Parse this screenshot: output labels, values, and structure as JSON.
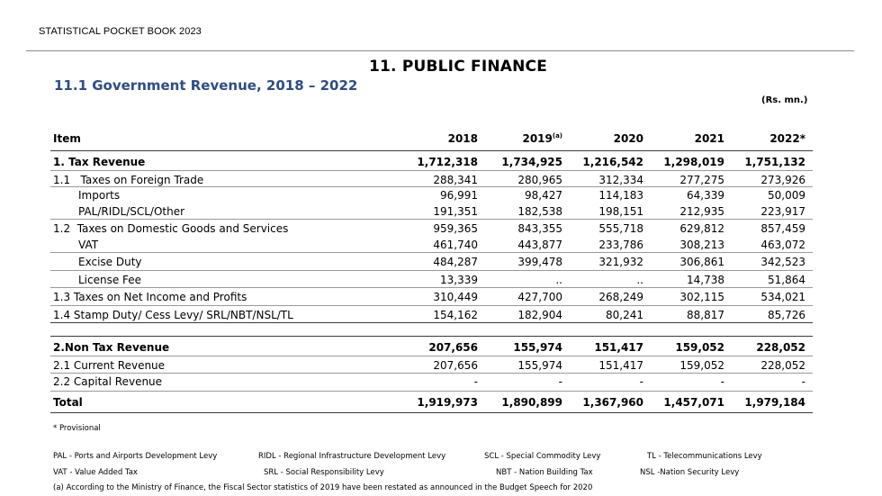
{
  "header": {
    "book_title": "STATISTICAL POCKET BOOK 2023"
  },
  "chapter_title": "11. PUBLIC FINANCE",
  "section_title": "11.1 Government Revenue, 2018 – 2022",
  "units": "(Rs. mn.)",
  "table": {
    "columns": [
      "Item",
      "2018",
      "2019",
      "2020",
      "2021",
      "2022*"
    ],
    "column_2019_superscript": "(a)",
    "rows": [
      {
        "label": "1. Tax Revenue",
        "values": [
          "1,712,318",
          "1,734,925",
          "1,216,542",
          "1,298,019",
          "1,751,132"
        ]
      },
      {
        "label": "1.1   Taxes on Foreign Trade",
        "values": [
          "288,341",
          "280,965",
          "312,334",
          "277,275",
          "273,926"
        ]
      },
      {
        "label": "Imports",
        "values": [
          "96,991",
          "98,427",
          "114,183",
          "64,339",
          "50,009"
        ]
      },
      {
        "label": "PAL/RIDL/SCL/Other",
        "values": [
          "191,351",
          "182,538",
          "198,151",
          "212,935",
          "223,917"
        ]
      },
      {
        "label": "1.2  Taxes on Domestic Goods and Services",
        "values": [
          "959,365",
          "843,355",
          "555,718",
          "629,812",
          "857,459"
        ]
      },
      {
        "label": "VAT",
        "values": [
          "461,740",
          "443,877",
          "233,786",
          "308,213",
          "463,072"
        ]
      },
      {
        "label": "Excise Duty",
        "values": [
          "484,287",
          "399,478",
          "321,932",
          "306,861",
          "342,523"
        ]
      },
      {
        "label": "License Fee",
        "values": [
          "13,339",
          "..",
          "..",
          "14,738",
          "51,864"
        ]
      },
      {
        "label": "1.3 Taxes on Net Income and Profits",
        "values": [
          "310,449",
          "427,700",
          "268,249",
          "302,115",
          "534,021"
        ]
      },
      {
        "label": "1.4 Stamp Duty/ Cess Levy/ SRL/NBT/NSL/TL",
        "values": [
          "154,162",
          "182,904",
          "80,241",
          "88,817",
          "85,726"
        ]
      },
      {
        "label": "2.Non Tax Revenue",
        "values": [
          "207,656",
          "155,974",
          "151,417",
          "159,052",
          "228,052"
        ]
      },
      {
        "label": "2.1 Current Revenue",
        "values": [
          "207,656",
          "155,974",
          "151,417",
          "159,052",
          "228,052"
        ]
      },
      {
        "label": "2.2 Capital Revenue",
        "values": [
          "-",
          "-",
          "-",
          "-",
          "-"
        ]
      },
      {
        "label": "Total",
        "values": [
          "1,919,973",
          "1,890,899",
          "1,367,960",
          "1,457,071",
          "1,979,184"
        ]
      }
    ]
  },
  "footnotes": {
    "provisional": "* Provisional",
    "pal": "PAL - Ports and Airports Development Levy",
    "ridl": "RIDL - Regional Infrastructure Development Levy",
    "scl": "SCL - Special Commodity Levy",
    "tl": "TL - Telecommunications Levy",
    "vat": "VAT - Value Added Tax",
    "srl": "SRL - Social Responsibility Levy",
    "nbt": "NBT - Nation Building Tax",
    "nsl": "NSL -Nation Security Levy",
    "note_a": "(a) According to the Ministry of Finance, the Fiscal Sector statistics of 2019 have been restated as announced in the Budget Speech for 2020"
  }
}
